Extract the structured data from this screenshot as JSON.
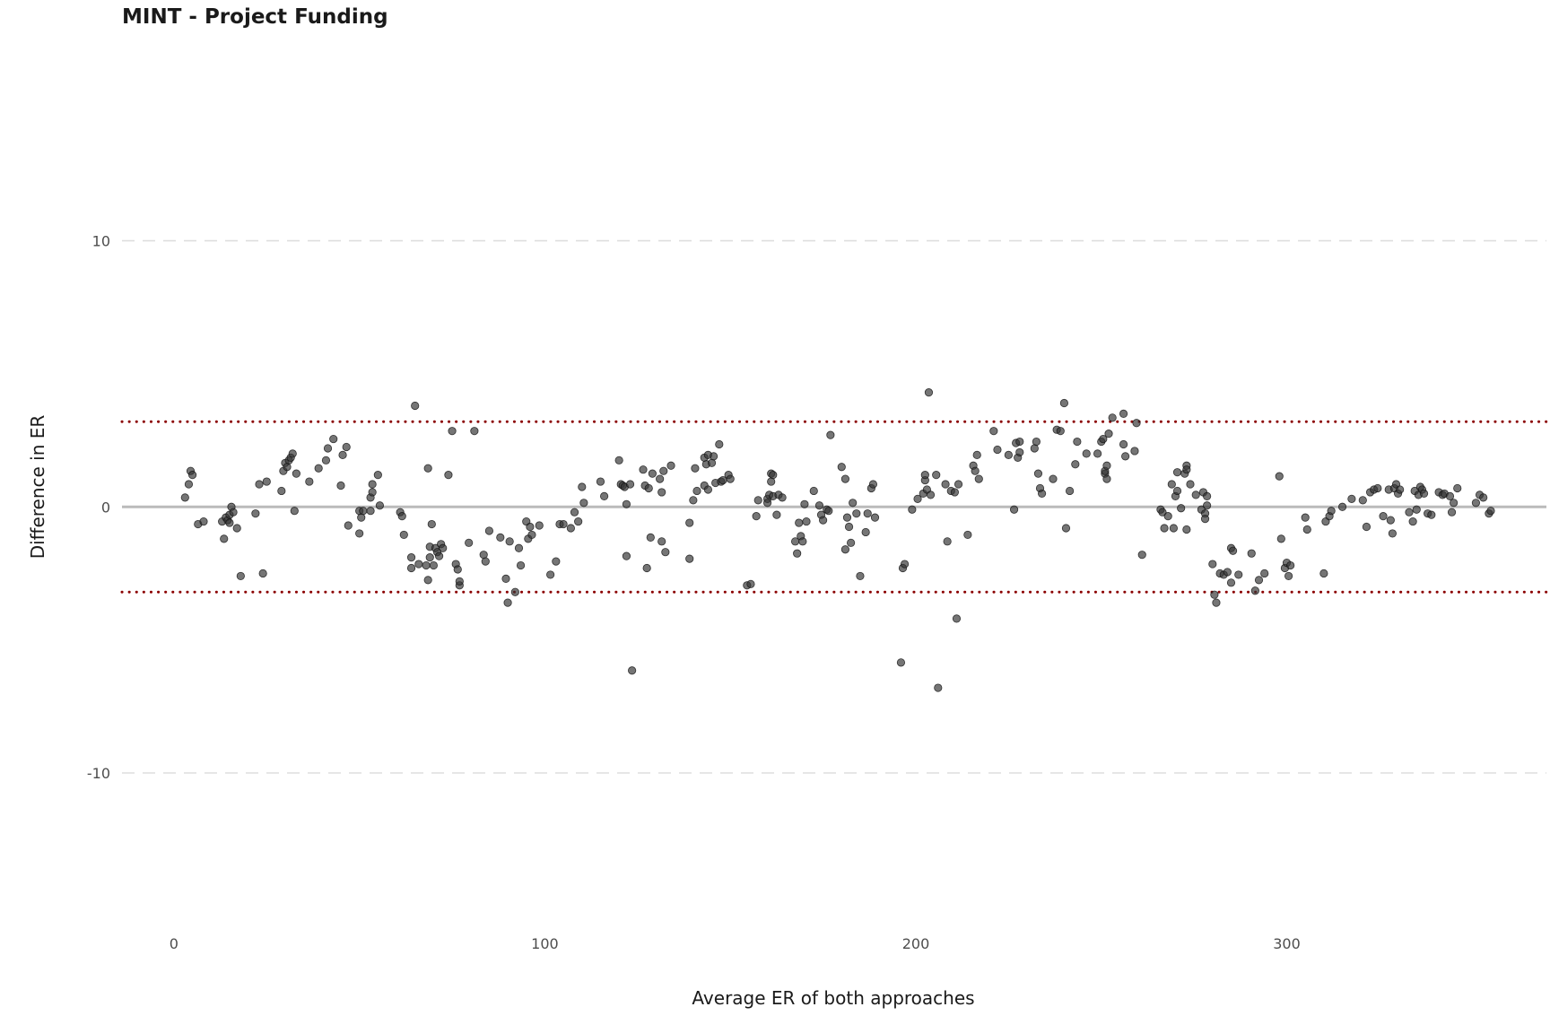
{
  "chart_data": {
    "type": "scatter",
    "title": "MINT - Project Funding",
    "xlabel": "Average ER of both approaches",
    "ylabel": "Difference in ER",
    "xlim": [
      -14,
      370
    ],
    "ylim": [
      -16.2,
      17.7
    ],
    "x_ticks": [
      0,
      100,
      200,
      300
    ],
    "y_ticks": [
      -10,
      0,
      10
    ],
    "grid": {
      "horizontal_major": "dashed",
      "vertical": false
    },
    "reference_lines": {
      "mean": 0,
      "upper_limit": 3.2,
      "lower_limit": -3.2
    },
    "colors": {
      "points": "#333333",
      "limits": "#8b0000",
      "mean_line": "#bbbbbb",
      "grid": "#dddddd"
    },
    "points": [
      [
        3,
        0.35
      ],
      [
        4,
        0.85
      ],
      [
        4.5,
        1.35
      ],
      [
        5,
        1.2
      ],
      [
        6.5,
        -0.65
      ],
      [
        8,
        -0.55
      ],
      [
        13,
        -0.55
      ],
      [
        13.5,
        -1.2
      ],
      [
        14,
        -0.4
      ],
      [
        14.5,
        -0.5
      ],
      [
        15,
        -0.3
      ],
      [
        15,
        -0.6
      ],
      [
        15.5,
        0
      ],
      [
        16,
        -0.2
      ],
      [
        17,
        -0.8
      ],
      [
        18,
        -2.6
      ],
      [
        22,
        -0.25
      ],
      [
        23,
        0.85
      ],
      [
        24,
        -2.5
      ],
      [
        25,
        0.95
      ],
      [
        29,
        0.6
      ],
      [
        29.5,
        1.35
      ],
      [
        30,
        1.65
      ],
      [
        30.5,
        1.5
      ],
      [
        31,
        1.75
      ],
      [
        31.5,
        1.85
      ],
      [
        32,
        2.0
      ],
      [
        32.5,
        -0.15
      ],
      [
        33,
        1.25
      ],
      [
        36.5,
        0.95
      ],
      [
        39,
        1.45
      ],
      [
        41,
        1.75
      ],
      [
        41.5,
        2.2
      ],
      [
        43,
        2.55
      ],
      [
        45,
        0.8
      ],
      [
        45.5,
        1.95
      ],
      [
        46.5,
        2.25
      ],
      [
        47,
        -0.7
      ],
      [
        50,
        -1.0
      ],
      [
        50,
        -0.15
      ],
      [
        50.5,
        -0.4
      ],
      [
        51,
        -0.15
      ],
      [
        53,
        -0.15
      ],
      [
        53,
        0.35
      ],
      [
        53.5,
        0.85
      ],
      [
        53.5,
        0.55
      ],
      [
        55,
        1.2
      ],
      [
        55.5,
        0.05
      ],
      [
        61,
        -0.2
      ],
      [
        61.5,
        -0.35
      ],
      [
        62,
        -1.05
      ],
      [
        64,
        -1.9
      ],
      [
        64,
        -2.3
      ],
      [
        65,
        3.8
      ],
      [
        66,
        -2.15
      ],
      [
        68,
        -2.2
      ],
      [
        68.5,
        -2.75
      ],
      [
        68.5,
        1.45
      ],
      [
        69,
        -1.9
      ],
      [
        69,
        -1.5
      ],
      [
        69.5,
        -0.65
      ],
      [
        70,
        -2.2
      ],
      [
        70.5,
        -1.55
      ],
      [
        71,
        -1.7
      ],
      [
        71.5,
        -1.85
      ],
      [
        72,
        -1.4
      ],
      [
        72.5,
        -1.55
      ],
      [
        74,
        1.2
      ],
      [
        75,
        2.85
      ],
      [
        76,
        -2.15
      ],
      [
        76.5,
        -2.35
      ],
      [
        77,
        -2.95
      ],
      [
        77,
        -2.8
      ],
      [
        79.5,
        -1.35
      ],
      [
        81,
        2.85
      ],
      [
        83.5,
        -1.8
      ],
      [
        84,
        -2.05
      ],
      [
        85,
        -0.9
      ],
      [
        88,
        -1.15
      ],
      [
        89.5,
        -2.7
      ],
      [
        90,
        -3.6
      ],
      [
        90.5,
        -1.3
      ],
      [
        92,
        -3.2
      ],
      [
        93,
        -1.55
      ],
      [
        93.5,
        -2.2
      ],
      [
        95,
        -0.55
      ],
      [
        95.5,
        -1.2
      ],
      [
        96,
        -0.75
      ],
      [
        96.5,
        -1.05
      ],
      [
        98.5,
        -0.7
      ],
      [
        101.5,
        -2.55
      ],
      [
        103,
        -2.05
      ],
      [
        104,
        -0.65
      ],
      [
        105,
        -0.65
      ],
      [
        107,
        -0.8
      ],
      [
        108,
        -0.2
      ],
      [
        109,
        -0.55
      ],
      [
        110,
        0.75
      ],
      [
        110.5,
        0.15
      ],
      [
        115,
        0.95
      ],
      [
        116,
        0.4
      ],
      [
        120,
        1.75
      ],
      [
        120.5,
        0.85
      ],
      [
        121,
        0.8
      ],
      [
        121.5,
        0.75
      ],
      [
        122,
        0.1
      ],
      [
        122,
        -1.85
      ],
      [
        123,
        0.85
      ],
      [
        123.5,
        -6.15
      ],
      [
        126.5,
        1.4
      ],
      [
        127,
        0.8
      ],
      [
        127.5,
        -2.3
      ],
      [
        128,
        0.7
      ],
      [
        128.5,
        -1.15
      ],
      [
        129,
        1.25
      ],
      [
        131,
        1.05
      ],
      [
        131.5,
        -1.3
      ],
      [
        131.5,
        0.55
      ],
      [
        132,
        1.35
      ],
      [
        132.5,
        -1.7
      ],
      [
        134,
        1.55
      ],
      [
        139,
        -0.6
      ],
      [
        139,
        -1.95
      ],
      [
        140,
        0.25
      ],
      [
        140.5,
        1.45
      ],
      [
        141,
        0.6
      ],
      [
        143,
        0.8
      ],
      [
        143,
        1.85
      ],
      [
        143.5,
        1.6
      ],
      [
        144,
        1.95
      ],
      [
        144,
        0.65
      ],
      [
        145,
        1.65
      ],
      [
        145.5,
        1.9
      ],
      [
        146,
        0.9
      ],
      [
        147,
        2.35
      ],
      [
        147.5,
        0.95
      ],
      [
        148,
        1.0
      ],
      [
        149.5,
        1.2
      ],
      [
        150,
        1.05
      ],
      [
        154.5,
        -2.95
      ],
      [
        155.5,
        -2.9
      ],
      [
        157,
        -0.35
      ],
      [
        157.5,
        0.25
      ],
      [
        160,
        0.3
      ],
      [
        160,
        0.15
      ],
      [
        160.5,
        0.45
      ],
      [
        161,
        0.95
      ],
      [
        161,
        1.25
      ],
      [
        161.5,
        0.4
      ],
      [
        161.5,
        1.2
      ],
      [
        162.5,
        -0.3
      ],
      [
        163,
        0.45
      ],
      [
        164,
        0.35
      ],
      [
        167.5,
        -1.3
      ],
      [
        168,
        -1.75
      ],
      [
        168.5,
        -0.6
      ],
      [
        169,
        -1.1
      ],
      [
        169.5,
        -1.3
      ],
      [
        170,
        0.1
      ],
      [
        170.5,
        -0.55
      ],
      [
        172.5,
        0.6
      ],
      [
        174,
        0.05
      ],
      [
        174.5,
        -0.3
      ],
      [
        175,
        -0.5
      ],
      [
        176,
        -0.1
      ],
      [
        176.5,
        -0.15
      ],
      [
        177,
        2.7
      ],
      [
        180,
        1.5
      ],
      [
        181,
        1.05
      ],
      [
        181,
        -1.6
      ],
      [
        181.5,
        -0.4
      ],
      [
        182,
        -0.75
      ],
      [
        182.5,
        -1.35
      ],
      [
        183,
        0.15
      ],
      [
        184,
        -0.25
      ],
      [
        185,
        -2.6
      ],
      [
        186.5,
        -0.95
      ],
      [
        187,
        -0.25
      ],
      [
        188,
        0.7
      ],
      [
        188.5,
        0.85
      ],
      [
        189,
        -0.4
      ],
      [
        196,
        -5.85
      ],
      [
        196.5,
        -2.3
      ],
      [
        197,
        -2.15
      ],
      [
        199,
        -0.1
      ],
      [
        200.5,
        0.3
      ],
      [
        202,
        0.5
      ],
      [
        202.5,
        1.0
      ],
      [
        202.5,
        1.2
      ],
      [
        203,
        0.65
      ],
      [
        203.5,
        4.3
      ],
      [
        204,
        0.45
      ],
      [
        205.5,
        1.2
      ],
      [
        206,
        -6.8
      ],
      [
        208,
        0.85
      ],
      [
        208.5,
        -1.3
      ],
      [
        209.5,
        0.6
      ],
      [
        210.5,
        0.55
      ],
      [
        211,
        -4.2
      ],
      [
        211.5,
        0.85
      ],
      [
        214,
        -1.05
      ],
      [
        215.5,
        1.55
      ],
      [
        216,
        1.35
      ],
      [
        216.5,
        1.95
      ],
      [
        217,
        1.05
      ],
      [
        221,
        2.85
      ],
      [
        222,
        2.15
      ],
      [
        225,
        1.95
      ],
      [
        226.5,
        -0.1
      ],
      [
        227,
        2.4
      ],
      [
        227.5,
        1.85
      ],
      [
        228,
        2.45
      ],
      [
        228,
        2.05
      ],
      [
        232,
        2.2
      ],
      [
        232.5,
        2.45
      ],
      [
        233,
        1.25
      ],
      [
        233.5,
        0.7
      ],
      [
        234,
        0.5
      ],
      [
        237,
        1.05
      ],
      [
        238,
        2.9
      ],
      [
        239,
        2.85
      ],
      [
        240,
        3.9
      ],
      [
        240.5,
        -0.8
      ],
      [
        241.5,
        0.6
      ],
      [
        243,
        1.6
      ],
      [
        243.5,
        2.45
      ],
      [
        246,
        2.0
      ],
      [
        249,
        2.0
      ],
      [
        250,
        2.45
      ],
      [
        250.5,
        2.55
      ],
      [
        251,
        1.25
      ],
      [
        251,
        1.35
      ],
      [
        251.5,
        1.55
      ],
      [
        251.5,
        1.05
      ],
      [
        252,
        2.75
      ],
      [
        253,
        3.35
      ],
      [
        256,
        3.5
      ],
      [
        256,
        2.35
      ],
      [
        256.5,
        1.9
      ],
      [
        259,
        2.1
      ],
      [
        259.5,
        3.15
      ],
      [
        261,
        -1.8
      ],
      [
        266,
        -0.1
      ],
      [
        266.5,
        -0.2
      ],
      [
        267,
        -0.8
      ],
      [
        268,
        -0.35
      ],
      [
        269,
        0.85
      ],
      [
        269.5,
        -0.8
      ],
      [
        270,
        0.4
      ],
      [
        270.5,
        1.3
      ],
      [
        270.5,
        0.6
      ],
      [
        271.5,
        -0.05
      ],
      [
        272.5,
        1.25
      ],
      [
        273,
        1.55
      ],
      [
        273,
        1.4
      ],
      [
        273,
        -0.85
      ],
      [
        274,
        0.85
      ],
      [
        275.5,
        0.45
      ],
      [
        277,
        -0.1
      ],
      [
        277.5,
        0.55
      ],
      [
        278,
        -0.25
      ],
      [
        278,
        -0.45
      ],
      [
        278.5,
        0.4
      ],
      [
        278.5,
        0.05
      ],
      [
        280,
        -2.15
      ],
      [
        280.5,
        -3.3
      ],
      [
        281,
        -3.6
      ],
      [
        282,
        -2.5
      ],
      [
        283,
        -2.55
      ],
      [
        284,
        -2.45
      ],
      [
        285,
        -1.55
      ],
      [
        285,
        -2.85
      ],
      [
        285.5,
        -1.65
      ],
      [
        287,
        -2.55
      ],
      [
        290.5,
        -1.75
      ],
      [
        291.5,
        -3.15
      ],
      [
        292.5,
        -2.75
      ],
      [
        294,
        -2.5
      ],
      [
        298,
        1.15
      ],
      [
        298.5,
        -1.2
      ],
      [
        299.5,
        -2.3
      ],
      [
        300,
        -2.1
      ],
      [
        300.5,
        -2.6
      ],
      [
        301,
        -2.2
      ],
      [
        305,
        -0.4
      ],
      [
        305.5,
        -0.85
      ],
      [
        310,
        -2.5
      ],
      [
        310.5,
        -0.55
      ],
      [
        311.5,
        -0.35
      ],
      [
        312,
        -0.15
      ],
      [
        315,
        0
      ],
      [
        317.5,
        0.3
      ],
      [
        320.5,
        0.25
      ],
      [
        321.5,
        -0.75
      ],
      [
        322.5,
        0.55
      ],
      [
        323.5,
        0.65
      ],
      [
        324.5,
        0.7
      ],
      [
        326,
        -0.35
      ],
      [
        327.5,
        0.65
      ],
      [
        328,
        -0.5
      ],
      [
        328.5,
        -1.0
      ],
      [
        329,
        0.7
      ],
      [
        329.5,
        0.85
      ],
      [
        330,
        0.5
      ],
      [
        330.5,
        0.65
      ],
      [
        333,
        -0.2
      ],
      [
        334,
        -0.55
      ],
      [
        334.5,
        0.6
      ],
      [
        335,
        -0.1
      ],
      [
        335.5,
        0.45
      ],
      [
        336,
        0.75
      ],
      [
        336.5,
        0.65
      ],
      [
        337,
        0.5
      ],
      [
        338,
        -0.25
      ],
      [
        339,
        -0.3
      ],
      [
        341,
        0.55
      ],
      [
        342,
        0.45
      ],
      [
        342.5,
        0.5
      ],
      [
        344,
        0.4
      ],
      [
        344.5,
        -0.2
      ],
      [
        345,
        0.15
      ],
      [
        346,
        0.7
      ],
      [
        351,
        0.15
      ],
      [
        352,
        0.45
      ],
      [
        353,
        0.35
      ],
      [
        354.5,
        -0.25
      ],
      [
        355,
        -0.15
      ]
    ]
  }
}
